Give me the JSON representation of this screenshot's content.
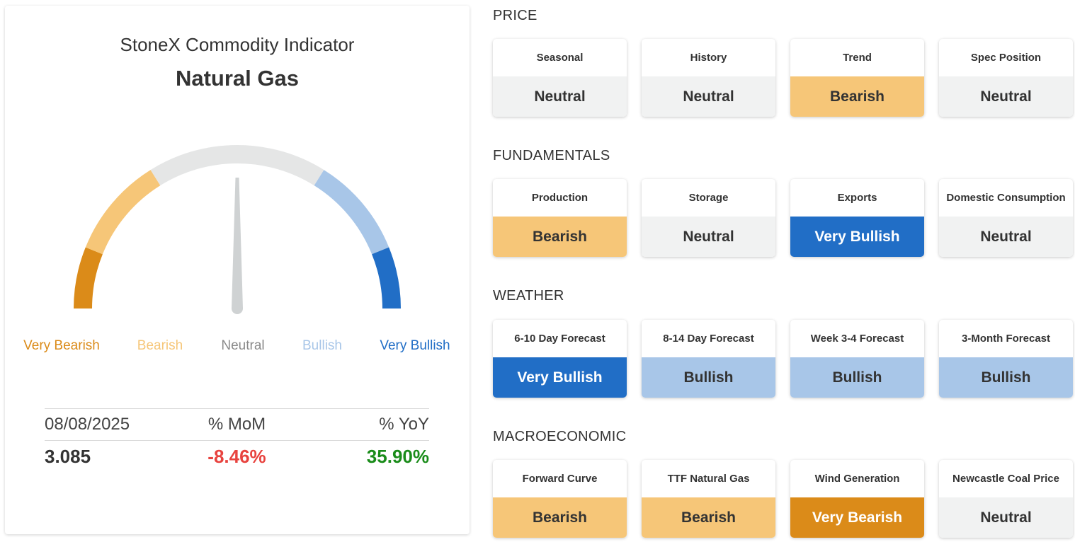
{
  "indicator": {
    "title": "StoneX Commodity Indicator",
    "commodity": "Natural Gas",
    "gauge": {
      "value_label": "Neutral",
      "needle_position": 0.5,
      "segments": [
        {
          "label": "Very Bearish",
          "color": "#db8b19"
        },
        {
          "label": "Bearish",
          "color": "#f6c678"
        },
        {
          "label": "Neutral",
          "color": "#e5e6e6"
        },
        {
          "label": "Bullish",
          "color": "#a8c6e8"
        },
        {
          "label": "Very Bullish",
          "color": "#216ec6"
        }
      ],
      "label_colors": [
        "#db8b19",
        "#f6c678",
        "#8a8a8a",
        "#a8c6e8",
        "#216ec6"
      ],
      "needle_color": "#cfd2d3"
    },
    "stats": {
      "date": "08/08/2025",
      "mom_header": "% MoM",
      "yoy_header": "% YoY",
      "price": "3.085",
      "mom": "-8.46%",
      "yoy": "35.90%",
      "mom_color": "#e8433f",
      "yoy_color": "#1a8c1a"
    }
  },
  "sections": [
    {
      "title": "PRICE",
      "tiles": [
        {
          "label": "Seasonal",
          "value": "Neutral",
          "status": "neutral"
        },
        {
          "label": "History",
          "value": "Neutral",
          "status": "neutral"
        },
        {
          "label": "Trend",
          "value": "Bearish",
          "status": "bearish"
        },
        {
          "label": "Spec Position",
          "value": "Neutral",
          "status": "neutral"
        }
      ]
    },
    {
      "title": "FUNDAMENTALS",
      "tiles": [
        {
          "label": "Production",
          "value": "Bearish",
          "status": "bearish"
        },
        {
          "label": "Storage",
          "value": "Neutral",
          "status": "neutral"
        },
        {
          "label": "Exports",
          "value": "Very Bullish",
          "status": "verybullish"
        },
        {
          "label": "Domestic Consumption",
          "value": "Neutral",
          "status": "neutral"
        }
      ]
    },
    {
      "title": "WEATHER",
      "tiles": [
        {
          "label": "6-10 Day Forecast",
          "value": "Very Bullish",
          "status": "verybullish"
        },
        {
          "label": "8-14 Day Forecast",
          "value": "Bullish",
          "status": "bullish"
        },
        {
          "label": "Week 3-4 Forecast",
          "value": "Bullish",
          "status": "bullish"
        },
        {
          "label": "3-Month Forecast",
          "value": "Bullish",
          "status": "bullish"
        }
      ]
    },
    {
      "title": "MACROECONOMIC",
      "tiles": [
        {
          "label": "Forward Curve",
          "value": "Bearish",
          "status": "bearish"
        },
        {
          "label": "TTF Natural Gas",
          "value": "Bearish",
          "status": "bearish"
        },
        {
          "label": "Wind Generation",
          "value": "Very Bearish",
          "status": "verybearish"
        },
        {
          "label": "Newcastle Coal Price",
          "value": "Neutral",
          "status": "neutral"
        }
      ]
    }
  ]
}
